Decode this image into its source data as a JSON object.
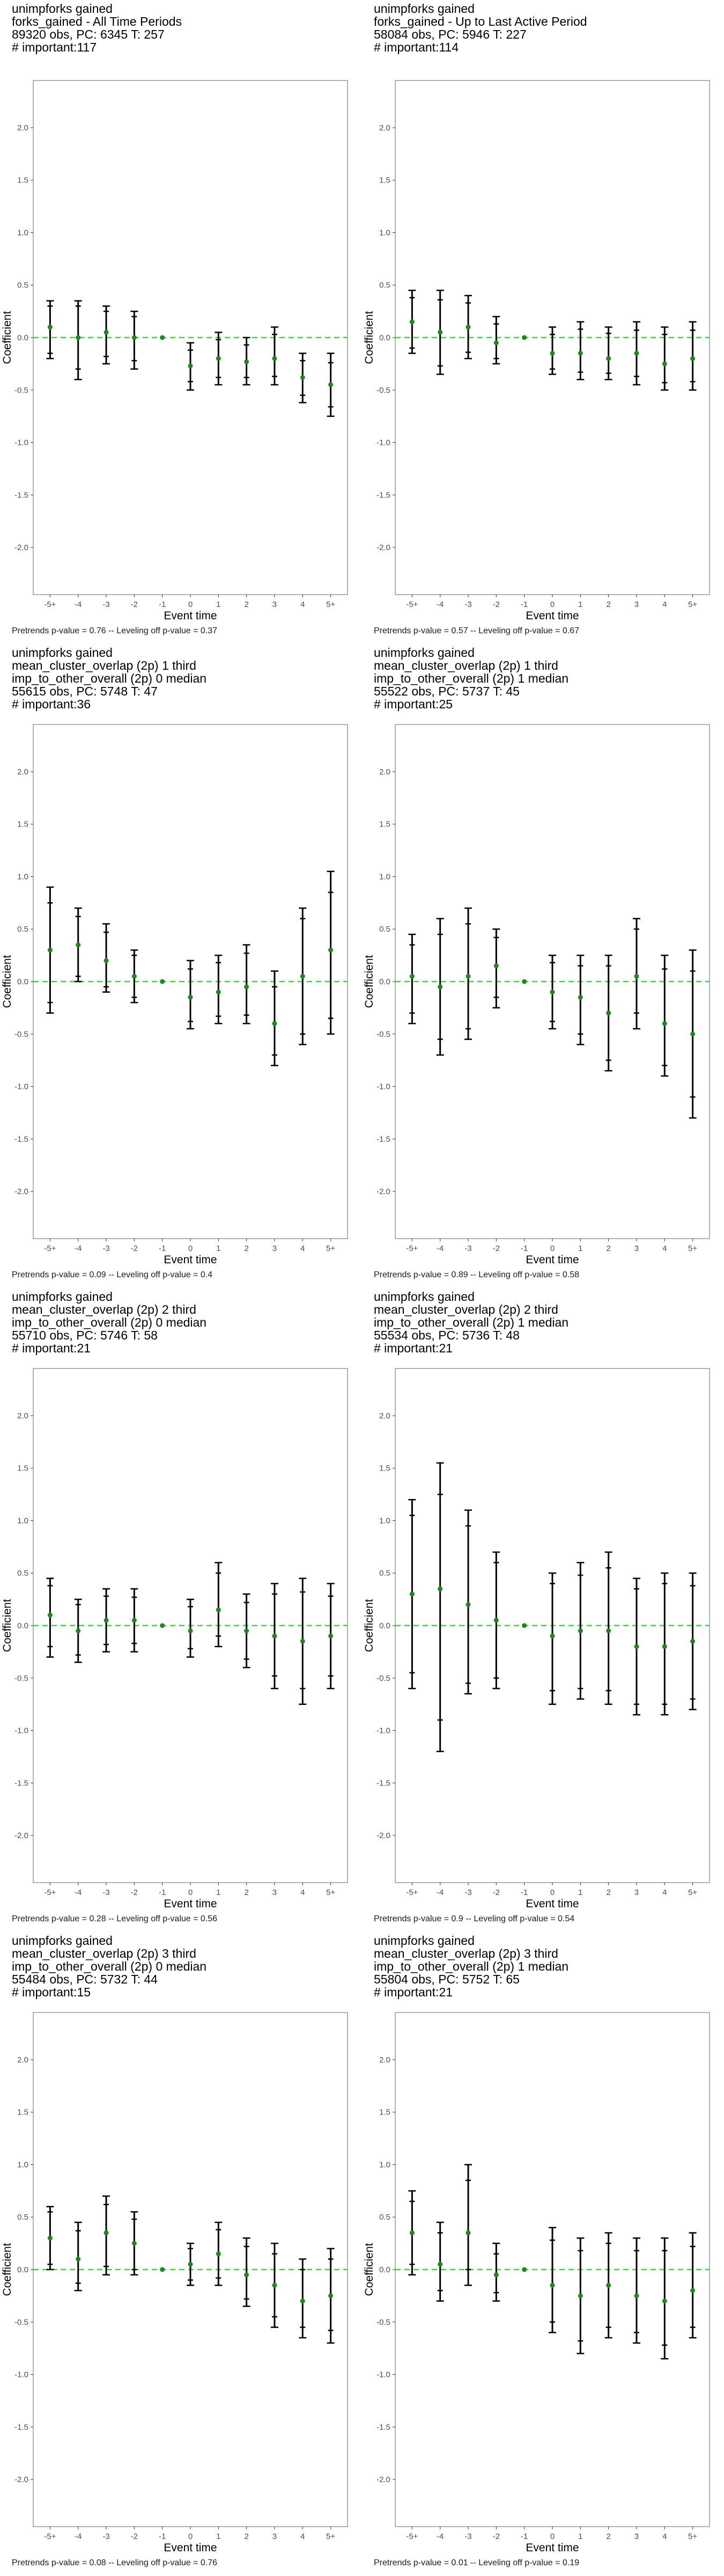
{
  "colors": {
    "point": "#1b8a1b",
    "ci": "#000000",
    "zero_line": "#33dd33",
    "panel_border": "#999999",
    "tick_text": "#4d4d4d"
  },
  "chart_data": [
    {
      "type": "scatter",
      "title_lines": [
        "unimpforks gained",
        "forks_gained - All Time Periods",
        "89320 obs, PC: 6345 T: 257",
        "# important:117"
      ],
      "xlabel": "Event time",
      "ylabel": "Coefficient",
      "categories": [
        "-5+",
        "-4",
        "-3",
        "-2",
        "-1",
        "0",
        "1",
        "2",
        "3",
        "4",
        "5+"
      ],
      "yticks": [
        "2.0",
        "1.5",
        "1.0",
        "0.5",
        "0.0",
        "-0.5",
        "-1.0",
        "-1.5",
        "-2.0"
      ],
      "ylim": [
        -2.45,
        2.45
      ],
      "caption": "Pretrends p-value = 0.76 -- Leveling off p-value = 0.37",
      "estimates": [
        0.1,
        0.0,
        0.05,
        0.0,
        0.0,
        -0.27,
        -0.2,
        -0.23,
        -0.2,
        -0.38,
        -0.45
      ],
      "ci_lower": [
        -0.2,
        -0.4,
        -0.25,
        -0.3,
        0.0,
        -0.5,
        -0.45,
        -0.45,
        -0.45,
        -0.62,
        -0.75
      ],
      "ci_upper": [
        0.35,
        0.35,
        0.3,
        0.25,
        0.0,
        -0.05,
        0.05,
        0.0,
        0.1,
        -0.15,
        -0.15
      ],
      "inner_lower": [
        -0.15,
        -0.3,
        -0.18,
        -0.22,
        0.0,
        -0.42,
        -0.38,
        -0.38,
        -0.37,
        -0.55,
        -0.66
      ],
      "inner_upper": [
        0.3,
        0.3,
        0.25,
        0.2,
        0.0,
        -0.12,
        -0.02,
        -0.07,
        0.03,
        -0.22,
        -0.24
      ]
    },
    {
      "type": "scatter",
      "title_lines": [
        "unimpforks gained",
        "forks_gained - Up to Last Active Period",
        "58084 obs, PC: 5946 T: 227",
        "# important:114"
      ],
      "xlabel": "Event time",
      "ylabel": "Coefficient",
      "categories": [
        "-5+",
        "-4",
        "-3",
        "-2",
        "-1",
        "0",
        "1",
        "2",
        "3",
        "4",
        "5+"
      ],
      "yticks": [
        "2.0",
        "1.5",
        "1.0",
        "0.5",
        "0.0",
        "-0.5",
        "-1.0",
        "-1.5",
        "-2.0"
      ],
      "ylim": [
        -2.45,
        2.45
      ],
      "caption": "Pretrends p-value = 0.57 -- Leveling off p-value = 0.67",
      "estimates": [
        0.15,
        0.05,
        0.1,
        -0.05,
        0.0,
        -0.15,
        -0.15,
        -0.2,
        -0.15,
        -0.25,
        -0.2
      ],
      "ci_lower": [
        -0.15,
        -0.35,
        -0.2,
        -0.25,
        0.0,
        -0.35,
        -0.4,
        -0.4,
        -0.45,
        -0.5,
        -0.5
      ],
      "ci_upper": [
        0.45,
        0.45,
        0.4,
        0.2,
        0.0,
        0.1,
        0.15,
        0.1,
        0.15,
        0.1,
        0.15
      ],
      "inner_lower": [
        -0.1,
        -0.27,
        -0.14,
        -0.2,
        0.0,
        -0.3,
        -0.33,
        -0.34,
        -0.37,
        -0.43,
        -0.42
      ],
      "inner_upper": [
        0.38,
        0.36,
        0.33,
        0.13,
        0.0,
        0.03,
        0.08,
        0.04,
        0.07,
        0.03,
        0.07
      ]
    },
    {
      "type": "scatter",
      "title_lines": [
        "unimpforks gained",
        "mean_cluster_overlap (2p) 1 third",
        "imp_to_other_overall (2p) 0 median",
        "55615 obs, PC: 5748 T: 47",
        "# important:36"
      ],
      "xlabel": "Event time",
      "ylabel": "Coefficient",
      "categories": [
        "-5+",
        "-4",
        "-3",
        "-2",
        "-1",
        "0",
        "1",
        "2",
        "3",
        "4",
        "5+"
      ],
      "yticks": [
        "2.0",
        "1.5",
        "1.0",
        "0.5",
        "0.0",
        "-0.5",
        "-1.0",
        "-1.5",
        "-2.0"
      ],
      "ylim": [
        -2.45,
        2.45
      ],
      "caption": "Pretrends p-value = 0.09 -- Leveling off p-value = 0.4",
      "estimates": [
        0.3,
        0.35,
        0.2,
        0.05,
        0.0,
        -0.15,
        -0.1,
        -0.05,
        -0.4,
        0.05,
        0.3
      ],
      "ci_lower": [
        -0.3,
        0.0,
        -0.1,
        -0.2,
        0.0,
        -0.45,
        -0.4,
        -0.4,
        -0.8,
        -0.6,
        -0.5
      ],
      "ci_upper": [
        0.9,
        0.7,
        0.55,
        0.3,
        0.0,
        0.2,
        0.25,
        0.35,
        0.1,
        0.7,
        1.05
      ],
      "inner_lower": [
        -0.2,
        0.05,
        -0.05,
        -0.15,
        0.0,
        -0.38,
        -0.33,
        -0.32,
        -0.7,
        -0.5,
        -0.35
      ],
      "inner_upper": [
        0.75,
        0.62,
        0.47,
        0.25,
        0.0,
        0.12,
        0.18,
        0.27,
        -0.05,
        0.6,
        0.85
      ]
    },
    {
      "type": "scatter",
      "title_lines": [
        "unimpforks gained",
        "mean_cluster_overlap (2p) 1 third",
        "imp_to_other_overall (2p) 1 median",
        "55522 obs, PC: 5737 T: 45",
        "# important:25"
      ],
      "xlabel": "Event time",
      "ylabel": "Coefficient",
      "categories": [
        "-5+",
        "-4",
        "-3",
        "-2",
        "-1",
        "0",
        "1",
        "2",
        "3",
        "4",
        "5+"
      ],
      "yticks": [
        "2.0",
        "1.5",
        "1.0",
        "0.5",
        "0.0",
        "-0.5",
        "-1.0",
        "-1.5",
        "-2.0"
      ],
      "ylim": [
        -2.45,
        2.45
      ],
      "caption": "Pretrends p-value = 0.89 -- Leveling off p-value = 0.58",
      "estimates": [
        0.05,
        -0.05,
        0.05,
        0.15,
        0.0,
        -0.1,
        -0.15,
        -0.3,
        0.05,
        -0.4,
        -0.5
      ],
      "ci_lower": [
        -0.4,
        -0.7,
        -0.55,
        -0.25,
        0.0,
        -0.45,
        -0.6,
        -0.85,
        -0.45,
        -0.9,
        -1.3
      ],
      "ci_upper": [
        0.45,
        0.6,
        0.7,
        0.5,
        0.0,
        0.25,
        0.25,
        0.25,
        0.6,
        0.25,
        0.3
      ],
      "inner_lower": [
        -0.3,
        -0.55,
        -0.45,
        -0.15,
        0.0,
        -0.38,
        -0.5,
        -0.75,
        -0.3,
        -0.8,
        -1.1
      ],
      "inner_upper": [
        0.35,
        0.45,
        0.55,
        0.42,
        0.0,
        0.18,
        0.15,
        0.15,
        0.5,
        0.12,
        0.1
      ]
    },
    {
      "type": "scatter",
      "title_lines": [
        "unimpforks gained",
        "mean_cluster_overlap (2p) 2 third",
        "imp_to_other_overall (2p) 0 median",
        "55710 obs, PC: 5746 T: 58",
        "# important:21"
      ],
      "xlabel": "Event time",
      "ylabel": "Coefficient",
      "categories": [
        "-5+",
        "-4",
        "-3",
        "-2",
        "-1",
        "0",
        "1",
        "2",
        "3",
        "4",
        "5+"
      ],
      "yticks": [
        "2.0",
        "1.5",
        "1.0",
        "0.5",
        "0.0",
        "-0.5",
        "-1.0",
        "-1.5",
        "-2.0"
      ],
      "ylim": [
        -2.45,
        2.45
      ],
      "caption": "Pretrends p-value = 0.28 -- Leveling off p-value = 0.56",
      "estimates": [
        0.1,
        -0.05,
        0.05,
        0.05,
        0.0,
        -0.05,
        0.15,
        -0.05,
        -0.1,
        -0.15,
        -0.1
      ],
      "ci_lower": [
        -0.3,
        -0.35,
        -0.25,
        -0.25,
        0.0,
        -0.3,
        -0.2,
        -0.4,
        -0.6,
        -0.75,
        -0.6
      ],
      "ci_upper": [
        0.45,
        0.25,
        0.35,
        0.35,
        0.0,
        0.25,
        0.6,
        0.3,
        0.4,
        0.45,
        0.4
      ],
      "inner_lower": [
        -0.2,
        -0.28,
        -0.18,
        -0.17,
        0.0,
        -0.22,
        -0.1,
        -0.32,
        -0.48,
        -0.6,
        -0.48
      ],
      "inner_upper": [
        0.38,
        0.2,
        0.28,
        0.27,
        0.0,
        0.18,
        0.5,
        0.22,
        0.3,
        0.32,
        0.28
      ]
    },
    {
      "type": "scatter",
      "title_lines": [
        "unimpforks gained",
        "mean_cluster_overlap (2p) 2 third",
        "imp_to_other_overall (2p) 1 median",
        "55534 obs, PC: 5736 T: 48",
        "# important:21"
      ],
      "xlabel": "Event time",
      "ylabel": "Coefficient",
      "categories": [
        "-5+",
        "-4",
        "-3",
        "-2",
        "-1",
        "0",
        "1",
        "2",
        "3",
        "4",
        "5+"
      ],
      "yticks": [
        "2.0",
        "1.5",
        "1.0",
        "0.5",
        "0.0",
        "-0.5",
        "-1.0",
        "-1.5",
        "-2.0"
      ],
      "ylim": [
        -2.45,
        2.45
      ],
      "caption": "Pretrends p-value = 0.9 -- Leveling off p-value = 0.54",
      "estimates": [
        0.3,
        0.35,
        0.2,
        0.05,
        0.0,
        -0.1,
        -0.05,
        -0.05,
        -0.2,
        -0.2,
        -0.15
      ],
      "ci_lower": [
        -0.6,
        -1.2,
        -0.65,
        -0.6,
        0.0,
        -0.75,
        -0.7,
        -0.75,
        -0.85,
        -0.85,
        -0.8
      ],
      "ci_upper": [
        1.2,
        1.55,
        1.1,
        0.7,
        0.0,
        0.5,
        0.6,
        0.7,
        0.45,
        0.5,
        0.5
      ],
      "inner_lower": [
        -0.45,
        -0.9,
        -0.55,
        -0.5,
        0.0,
        -0.62,
        -0.6,
        -0.62,
        -0.75,
        -0.75,
        -0.7
      ],
      "inner_upper": [
        1.05,
        1.25,
        0.95,
        0.6,
        0.0,
        0.4,
        0.48,
        0.55,
        0.35,
        0.4,
        0.38
      ]
    },
    {
      "type": "scatter",
      "title_lines": [
        "unimpforks gained",
        "mean_cluster_overlap (2p) 3 third",
        "imp_to_other_overall (2p) 0 median",
        "55484 obs, PC: 5732 T: 44",
        "# important:15"
      ],
      "xlabel": "Event time",
      "ylabel": "Coefficient",
      "categories": [
        "-5+",
        "-4",
        "-3",
        "-2",
        "-1",
        "0",
        "1",
        "2",
        "3",
        "4",
        "5+"
      ],
      "yticks": [
        "2.0",
        "1.5",
        "1.0",
        "0.5",
        "0.0",
        "-0.5",
        "-1.0",
        "-1.5",
        "-2.0"
      ],
      "ylim": [
        -2.45,
        2.45
      ],
      "caption": "Pretrends p-value = 0.08 -- Leveling off p-value = 0.76",
      "estimates": [
        0.3,
        0.1,
        0.35,
        0.25,
        0.0,
        0.05,
        0.15,
        -0.05,
        -0.15,
        -0.3,
        -0.25
      ],
      "ci_lower": [
        0.0,
        -0.2,
        -0.05,
        -0.05,
        0.0,
        -0.15,
        -0.15,
        -0.35,
        -0.55,
        -0.65,
        -0.7
      ],
      "ci_upper": [
        0.6,
        0.45,
        0.7,
        0.55,
        0.0,
        0.25,
        0.45,
        0.3,
        0.25,
        0.1,
        0.2
      ],
      "inner_lower": [
        0.05,
        -0.13,
        0.03,
        0.0,
        0.0,
        -0.1,
        -0.08,
        -0.28,
        -0.45,
        -0.55,
        -0.58
      ],
      "inner_upper": [
        0.55,
        0.37,
        0.62,
        0.48,
        0.0,
        0.2,
        0.38,
        0.22,
        0.15,
        0.0,
        0.1
      ]
    },
    {
      "type": "scatter",
      "title_lines": [
        "unimpforks gained",
        "mean_cluster_overlap (2p) 3 third",
        "imp_to_other_overall (2p) 1 median",
        "55804 obs, PC: 5752 T: 65",
        "# important:21"
      ],
      "xlabel": "Event time",
      "ylabel": "Coefficient",
      "categories": [
        "-5+",
        "-4",
        "-3",
        "-2",
        "-1",
        "0",
        "1",
        "2",
        "3",
        "4",
        "5+"
      ],
      "yticks": [
        "2.0",
        "1.5",
        "1.0",
        "0.5",
        "0.0",
        "-0.5",
        "-1.0",
        "-1.5",
        "-2.0"
      ],
      "ylim": [
        -2.45,
        2.45
      ],
      "caption": "Pretrends p-value = 0.01 -- Leveling off p-value = 0.19",
      "estimates": [
        0.35,
        0.05,
        0.35,
        -0.05,
        0.0,
        -0.15,
        -0.25,
        -0.15,
        -0.25,
        -0.3,
        -0.2
      ],
      "ci_lower": [
        -0.05,
        -0.3,
        -0.15,
        -0.3,
        0.0,
        -0.6,
        -0.8,
        -0.65,
        -0.7,
        -0.85,
        -0.65
      ],
      "ci_upper": [
        0.75,
        0.45,
        1.0,
        0.25,
        0.0,
        0.4,
        0.3,
        0.35,
        0.3,
        0.3,
        0.35
      ],
      "inner_lower": [
        0.05,
        -0.2,
        0.0,
        -0.22,
        0.0,
        -0.5,
        -0.68,
        -0.55,
        -0.6,
        -0.72,
        -0.55
      ],
      "inner_upper": [
        0.65,
        0.35,
        0.85,
        0.15,
        0.0,
        0.28,
        0.18,
        0.25,
        0.18,
        0.18,
        0.22
      ]
    }
  ]
}
